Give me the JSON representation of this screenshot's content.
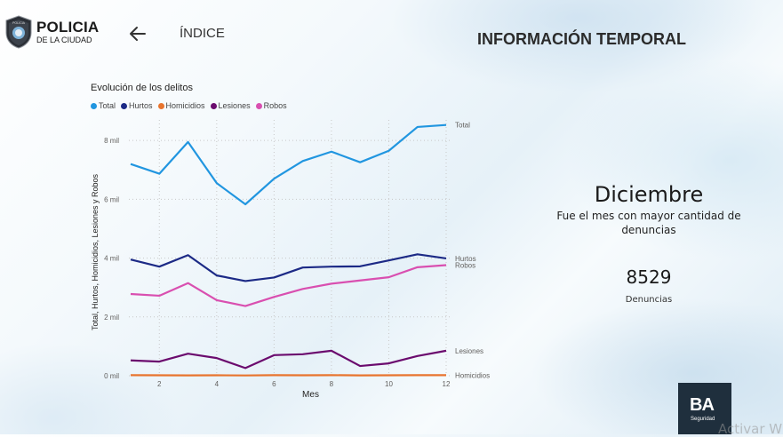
{
  "header": {
    "logo_title": "POLICIA",
    "logo_subtitle": "DE LA CIUDAD",
    "badge_text": "POLICIA",
    "nav_label": "ÍNDICE",
    "page_title": "INFORMACIÓN TEMPORAL"
  },
  "chart_data": {
    "type": "line",
    "title": "Evolución de los delitos",
    "xlabel": "Mes",
    "ylabel": "Total, Hurtos, Homicidios, Lesiones y Robos",
    "x": [
      1,
      2,
      3,
      4,
      5,
      6,
      7,
      8,
      9,
      10,
      11,
      12
    ],
    "xticks": [
      2,
      4,
      6,
      8,
      10,
      12
    ],
    "yticks": [
      0,
      2000,
      4000,
      6000,
      8000
    ],
    "ytick_labels": [
      "0 mil",
      "2 mil",
      "4 mil",
      "6 mil",
      "8 mil"
    ],
    "ylim": [
      0,
      8700
    ],
    "xlim": [
      1,
      12
    ],
    "grid": true,
    "legend_position": "top-left",
    "series": [
      {
        "name": "Total",
        "color": "#2196e0",
        "end_label": "Total",
        "values": [
          7200,
          6870,
          7950,
          6550,
          5830,
          6700,
          7300,
          7620,
          7260,
          7650,
          8460,
          8529
        ]
      },
      {
        "name": "Hurtos",
        "color": "#1c2a86",
        "end_label": "Hurtos",
        "values": [
          3950,
          3710,
          4100,
          3410,
          3220,
          3340,
          3680,
          3710,
          3720,
          3920,
          4130,
          3990
        ]
      },
      {
        "name": "Homicidios",
        "color": "#e8742e",
        "end_label": "Homicidios",
        "values": [
          20,
          15,
          12,
          15,
          10,
          18,
          15,
          20,
          12,
          15,
          18,
          20
        ]
      },
      {
        "name": "Lesiones",
        "color": "#6b0b6e",
        "end_label": "Lesiones",
        "values": [
          520,
          480,
          750,
          600,
          260,
          700,
          730,
          850,
          330,
          420,
          670,
          850
        ]
      },
      {
        "name": "Robos",
        "color": "#d94fb0",
        "end_label": "Robos",
        "values": [
          2780,
          2720,
          3150,
          2570,
          2370,
          2680,
          2950,
          3130,
          3240,
          3350,
          3690,
          3760
        ]
      }
    ]
  },
  "summary": {
    "month": "Diciembre",
    "description": "Fue el mes con mayor cantidad de denuncias",
    "value": "8529",
    "value_label": "Denuncias"
  },
  "footer": {
    "ba_mark": "BA",
    "ba_sub": "Seguridad",
    "watermark": "Activar W"
  }
}
